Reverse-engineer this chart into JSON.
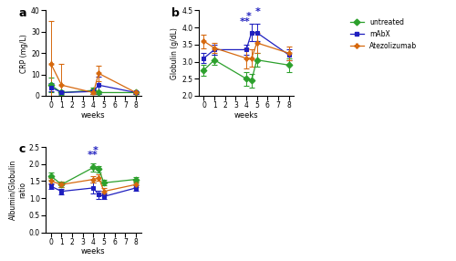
{
  "weeks_crp": [
    0,
    1,
    4,
    4.5,
    8
  ],
  "crp_untreated": [
    5.0,
    1.5,
    2.5,
    1.5,
    1.5
  ],
  "crp_untreated_err": [
    3.5,
    1.0,
    1.5,
    0.5,
    0.5
  ],
  "crp_mabx": [
    4.0,
    1.5,
    2.0,
    5.0,
    1.5
  ],
  "crp_mabx_err": [
    2.0,
    0.8,
    1.0,
    4.0,
    0.5
  ],
  "crp_atezolizumab": [
    15.0,
    5.0,
    1.5,
    10.5,
    1.5
  ],
  "crp_atezolizumab_err": [
    20.0,
    10.0,
    0.8,
    3.5,
    0.5
  ],
  "weeks_glob": [
    0,
    1,
    4,
    4.5,
    5,
    8
  ],
  "glob_untreated": [
    2.75,
    3.05,
    2.5,
    2.45,
    3.05,
    2.9
  ],
  "glob_untreated_err": [
    0.15,
    0.15,
    0.2,
    0.2,
    0.2,
    0.2
  ],
  "glob_mabx": [
    3.1,
    3.35,
    3.35,
    3.85,
    3.85,
    3.2
  ],
  "glob_mabx_err": [
    0.15,
    0.15,
    0.15,
    0.25,
    0.25,
    0.15
  ],
  "glob_atezolizumab": [
    3.6,
    3.4,
    3.1,
    3.1,
    3.55,
    3.25
  ],
  "glob_atezolizumab_err": [
    0.2,
    0.15,
    0.3,
    0.25,
    0.3,
    0.2
  ],
  "weeks_ratio": [
    0,
    1,
    4,
    4.5,
    5,
    8
  ],
  "ratio_untreated": [
    1.65,
    1.4,
    1.9,
    1.85,
    1.45,
    1.55
  ],
  "ratio_untreated_err": [
    0.1,
    0.08,
    0.12,
    0.1,
    0.08,
    0.08
  ],
  "ratio_mabx": [
    1.35,
    1.2,
    1.3,
    1.1,
    1.05,
    1.3
  ],
  "ratio_mabx_err": [
    0.08,
    0.08,
    0.15,
    0.12,
    0.08,
    0.08
  ],
  "ratio_atezolizumab": [
    1.5,
    1.4,
    1.55,
    1.6,
    1.2,
    1.4
  ],
  "ratio_atezolizumab_err": [
    0.1,
    0.08,
    0.1,
    0.1,
    0.1,
    0.08
  ],
  "color_untreated": "#2ca02c",
  "color_mabx": "#1f1fbf",
  "color_atezolizumab": "#d6690f",
  "label_untreated": "untreated",
  "label_mabx": "mAbX",
  "label_atezolizumab": "Atezolizumab",
  "crp_ylim": [
    0,
    40
  ],
  "crp_yticks": [
    0,
    10,
    20,
    30,
    40
  ],
  "crp_ylabel": "CRP (mg/L)",
  "glob_ylim": [
    2.0,
    4.5
  ],
  "glob_yticks": [
    2.0,
    2.5,
    3.0,
    3.5,
    4.0,
    4.5
  ],
  "glob_ylabel": "Globulin (g/dL)",
  "ratio_ylim": [
    0.0,
    2.5
  ],
  "ratio_yticks": [
    0.0,
    0.5,
    1.0,
    1.5,
    2.0,
    2.5
  ],
  "ratio_ylabel": "Albumin/Globulin\nratio",
  "xlabel": "weeks",
  "xticks": [
    0,
    1,
    2,
    3,
    4,
    5,
    6,
    7,
    8
  ],
  "star_color_blue": "#1f1fbf",
  "star_color_orange": "#d6690f",
  "panel_a_label": "a",
  "panel_b_label": "b",
  "panel_c_label": "c"
}
